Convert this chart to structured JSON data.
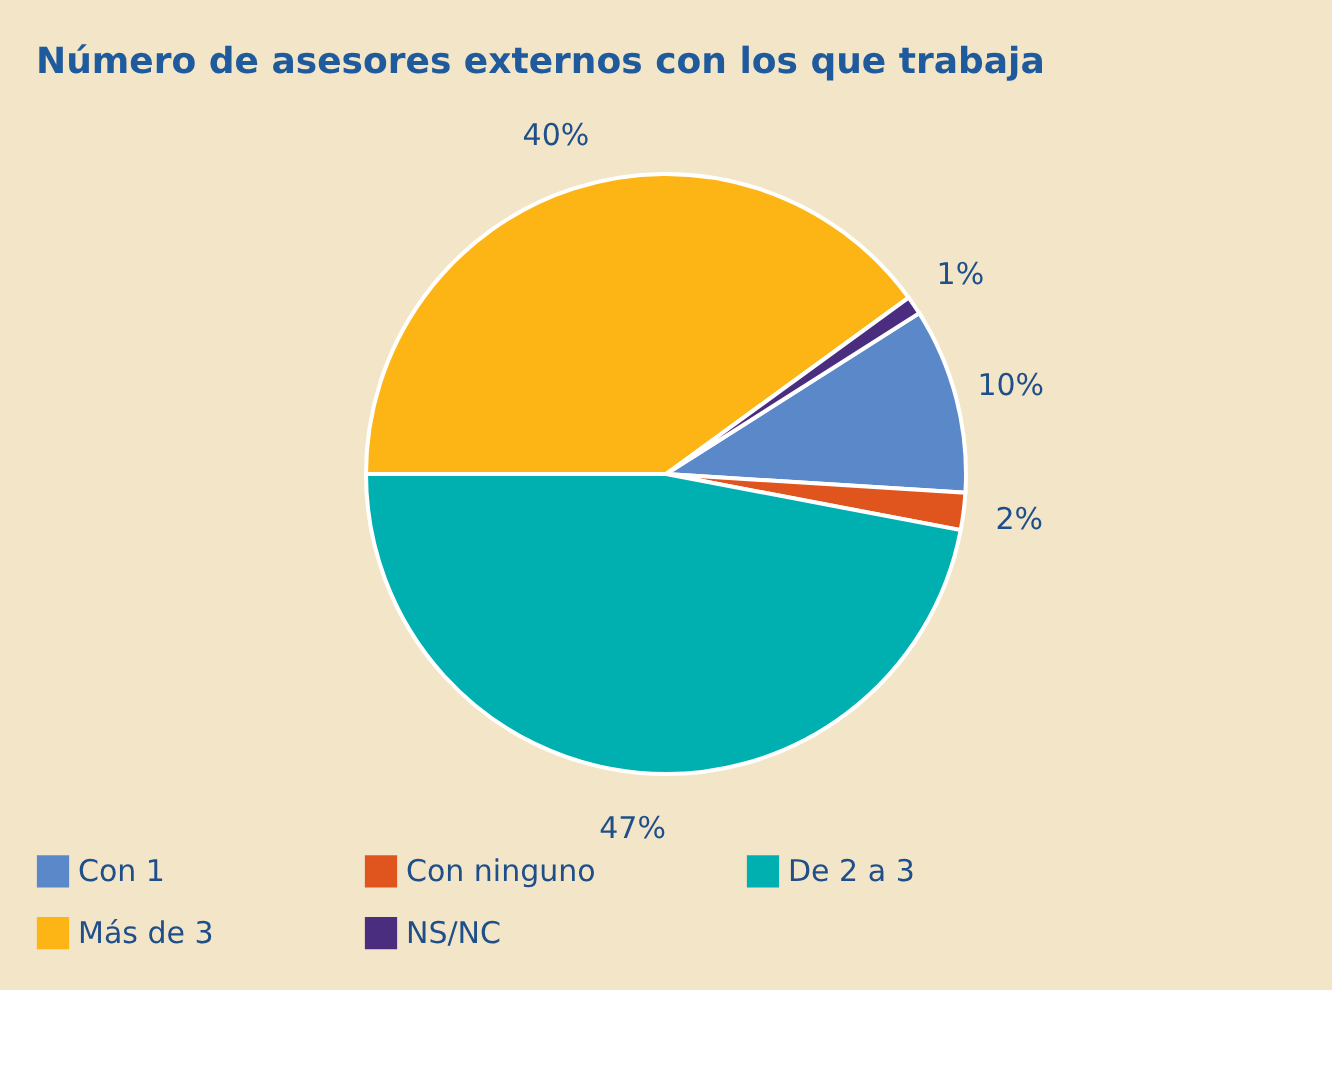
{
  "chart_data": {
    "type": "pie",
    "title": "Número de asesores externos con los que trabaja",
    "categories": [
      "Con 1",
      "Con ninguno",
      "De 2 a 3",
      "Más de 3",
      "NS/NC"
    ],
    "values": [
      10,
      2,
      47,
      40,
      1
    ],
    "colors": [
      "#5b88c8",
      "#e0541e",
      "#00b0b0",
      "#fdb515",
      "#4b2d7f"
    ],
    "value_labels": [
      "10%",
      "2%",
      "47%",
      "40%",
      "1%"
    ],
    "legend": "bottom"
  }
}
